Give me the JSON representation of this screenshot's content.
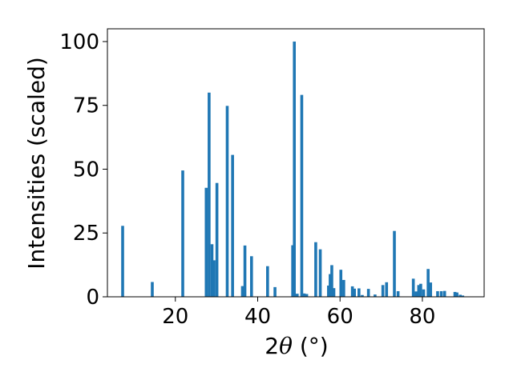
{
  "chart_data": {
    "type": "bar",
    "xlabel_prefix": "2",
    "xlabel_symbol": "θ",
    "xlabel_suffix": " (°)",
    "ylabel": "Intensities (scaled)",
    "xlim": [
      3.5,
      95
    ],
    "ylim": [
      0,
      105
    ],
    "xticks": [
      20,
      40,
      60,
      80
    ],
    "yticks": [
      0,
      25,
      50,
      75,
      100
    ],
    "grid": false,
    "bar_width": 0.7,
    "bar_color": "#1f77b4",
    "x": [
      7.2,
      14.4,
      21.8,
      27.5,
      28.2,
      28.9,
      29.4,
      30.1,
      32.6,
      33.9,
      36.3,
      36.9,
      38.5,
      42.4,
      44.2,
      48.5,
      48.9,
      49.6,
      50.7,
      51.3,
      51.9,
      54.1,
      55.2,
      57.2,
      57.6,
      58.0,
      58.5,
      60.2,
      60.9,
      63.0,
      63.5,
      64.6,
      65.4,
      66.9,
      68.5,
      70.4,
      71.3,
      73.2,
      74.1,
      77.8,
      78.5,
      79.1,
      79.6,
      80.3,
      81.4,
      82.0,
      83.7,
      84.6,
      85.4,
      87.9,
      88.4,
      89.2,
      89.8
    ],
    "values": [
      27.8,
      5.8,
      49.5,
      42.7,
      80.0,
      20.6,
      14.3,
      44.6,
      74.8,
      55.6,
      4.2,
      20.1,
      15.9,
      12.0,
      3.8,
      20.2,
      100.0,
      1.2,
      79.1,
      1.3,
      1.1,
      21.4,
      18.6,
      4.4,
      8.9,
      12.4,
      3.4,
      10.6,
      6.6,
      4.1,
      3.2,
      3.3,
      0.7,
      3.1,
      0.9,
      4.6,
      5.7,
      25.8,
      2.2,
      7.1,
      2.1,
      4.6,
      5.1,
      2.9,
      10.9,
      5.6,
      2.2,
      2.2,
      2.3,
      1.9,
      1.7,
      0.8,
      0.5
    ]
  }
}
